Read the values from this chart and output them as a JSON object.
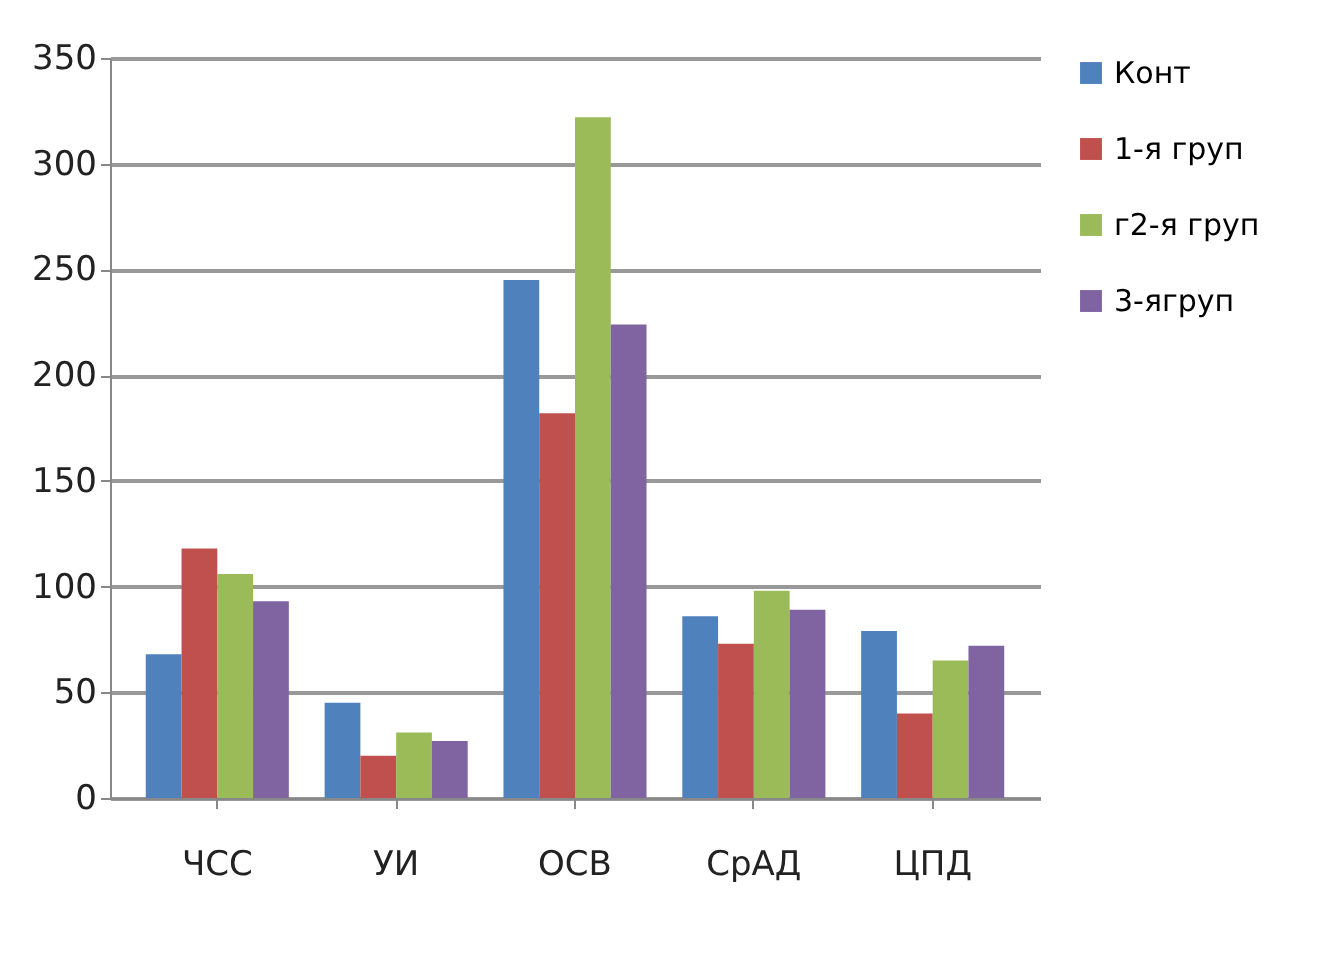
{
  "chart_data": {
    "type": "bar",
    "categories": [
      "ЧСС",
      "УИ",
      "ОСВ",
      "СрАД",
      "ЦПД"
    ],
    "series": [
      {
        "name": "Конт",
        "color": "#4f81bd",
        "values": [
          68,
          45,
          245,
          86,
          79
        ]
      },
      {
        "name": "1-я груп",
        "color": "#c0504d",
        "values": [
          118,
          20,
          182,
          73,
          40
        ]
      },
      {
        "name": "г2-я груп",
        "color": "#9bbb59",
        "values": [
          106,
          31,
          322,
          98,
          65
        ]
      },
      {
        "name": "3-ягруп",
        "color": "#8064a2",
        "values": [
          93,
          27,
          224,
          89,
          72
        ]
      }
    ],
    "ylim": [
      0,
      350
    ],
    "yticks": [
      0,
      50,
      100,
      150,
      200,
      250,
      300,
      350
    ],
    "grid": "y",
    "legend": "right"
  }
}
